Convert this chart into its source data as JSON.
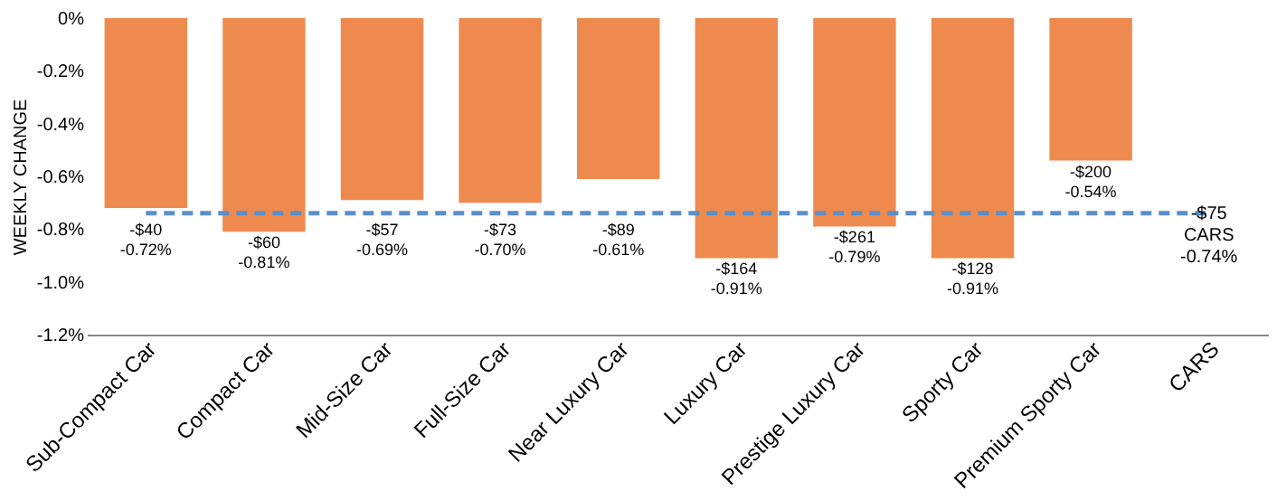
{
  "chart_data": {
    "type": "bar",
    "ylabel": "WEEKLY CHANGE",
    "categories": [
      "Sub-Compact Car",
      "Compact Car",
      "Mid-Size Car",
      "Full-Size Car",
      "Near Luxury Car",
      "Luxury Car",
      "Prestige Luxury Car",
      "Sporty Car",
      "Premium Sporty Car",
      "CARS"
    ],
    "values": [
      -0.72,
      -0.81,
      -0.69,
      -0.7,
      -0.61,
      -0.91,
      -0.79,
      -0.91,
      -0.54,
      null
    ],
    "value_labels": [
      "-$40\n-0.72%",
      "-$60\n-0.81%",
      "-$57\n-0.69%",
      "-$73\n-0.70%",
      "-$89\n-0.61%",
      "-$164\n-0.91%",
      "-$261\n-0.79%",
      "-$128\n-0.91%",
      "-$200\n-0.54%",
      null
    ],
    "color": "#ee8a4e",
    "ylim": [
      -1.2,
      0
    ],
    "yticks": [
      {
        "value": 0,
        "label": "0%"
      },
      {
        "value": -0.2,
        "label": "-0.2%"
      },
      {
        "value": -0.4,
        "label": "-0.4%"
      },
      {
        "value": -0.6,
        "label": "-0.6%"
      },
      {
        "value": -0.8,
        "label": "-0.8%"
      },
      {
        "value": -1.0,
        "label": "-1.0%"
      },
      {
        "value": -1.2,
        "label": "-1.2%"
      }
    ],
    "ref_lines": [
      {
        "axis": "y",
        "value": -0.74,
        "label": "-$75\nCARS\n-0.74%",
        "color": "#5b8fc9",
        "line_style": "dashed"
      }
    ],
    "grid": false,
    "legend": false
  }
}
